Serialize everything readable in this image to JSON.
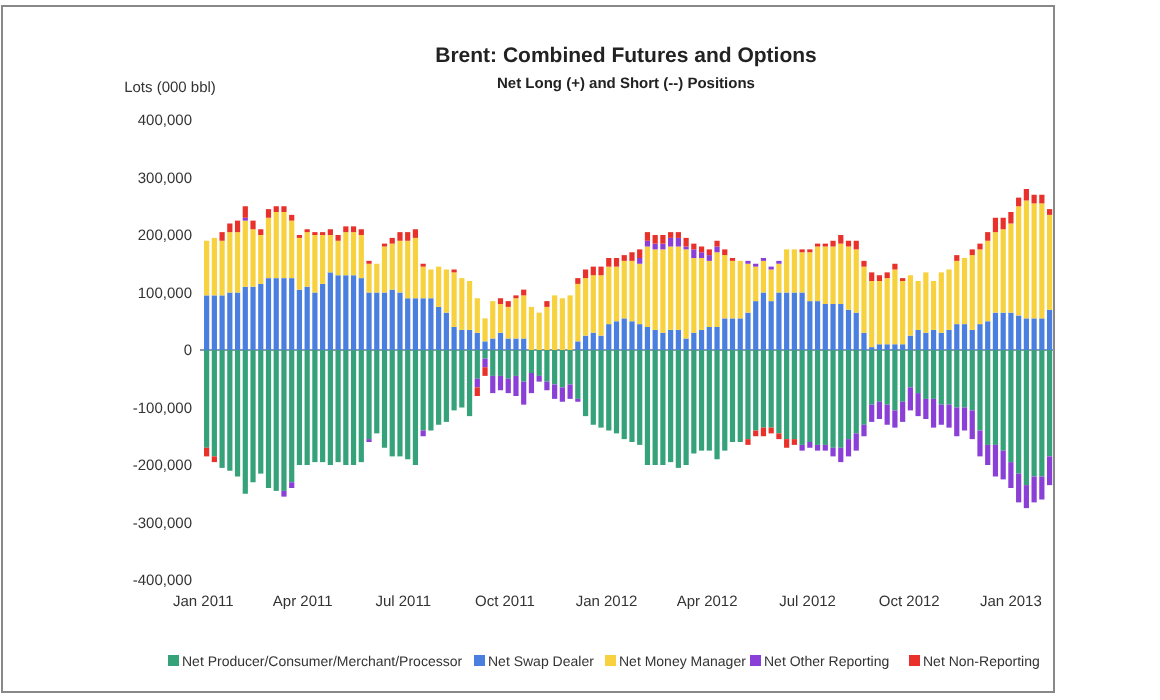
{
  "chart_data": {
    "type": "bar",
    "stacked": true,
    "title": "Brent: Combined Futures and Options",
    "subtitle": "Net Long (+) and Short (--) Positions",
    "ylabel": "Lots (000 bbl)",
    "x": [
      "2011-01-04",
      "2011-01-11",
      "2011-01-18",
      "2011-01-25",
      "2011-02-01",
      "2011-02-08",
      "2011-02-15",
      "2011-02-22",
      "2011-03-01",
      "2011-03-08",
      "2011-03-15",
      "2011-03-22",
      "2011-03-29",
      "2011-04-05",
      "2011-04-12",
      "2011-04-19",
      "2011-04-26",
      "2011-05-03",
      "2011-05-10",
      "2011-05-17",
      "2011-05-24",
      "2011-05-31",
      "2011-06-07",
      "2011-06-14",
      "2011-06-21",
      "2011-06-28",
      "2011-07-05",
      "2011-07-12",
      "2011-07-19",
      "2011-07-26",
      "2011-08-02",
      "2011-08-09",
      "2011-08-16",
      "2011-08-23",
      "2011-08-30",
      "2011-09-06",
      "2011-09-13",
      "2011-09-20",
      "2011-09-27",
      "2011-10-04",
      "2011-10-11",
      "2011-10-18",
      "2011-10-25",
      "2011-11-01",
      "2011-11-08",
      "2011-11-15",
      "2011-11-22",
      "2011-11-29",
      "2011-12-06",
      "2011-12-13",
      "2011-12-20",
      "2011-12-27",
      "2012-01-03",
      "2012-01-10",
      "2012-01-17",
      "2012-01-24",
      "2012-01-31",
      "2012-02-07",
      "2012-02-14",
      "2012-02-21",
      "2012-02-28",
      "2012-03-06",
      "2012-03-13",
      "2012-03-20",
      "2012-03-27",
      "2012-04-03",
      "2012-04-10",
      "2012-04-17",
      "2012-04-24",
      "2012-05-01",
      "2012-05-08",
      "2012-05-15",
      "2012-05-22",
      "2012-05-29",
      "2012-06-05",
      "2012-06-12",
      "2012-06-19",
      "2012-06-26",
      "2012-07-03",
      "2012-07-10",
      "2012-07-17",
      "2012-07-24",
      "2012-07-31",
      "2012-08-07",
      "2012-08-14",
      "2012-08-21",
      "2012-08-28",
      "2012-09-04",
      "2012-09-11",
      "2012-09-18",
      "2012-09-25",
      "2012-10-02",
      "2012-10-09",
      "2012-10-16",
      "2012-10-23",
      "2012-10-30",
      "2012-11-06",
      "2012-11-13",
      "2012-11-20",
      "2012-11-27",
      "2012-12-04",
      "2012-12-11",
      "2012-12-18",
      "2012-12-25",
      "2013-01-01",
      "2013-01-08",
      "2013-01-15",
      "2013-01-22",
      "2013-01-29",
      "2013-02-05"
    ],
    "series": [
      {
        "name": "Net Producer/Consumer/Merchant/Processor",
        "color": "#35a27a",
        "values": [
          -170000,
          -185000,
          -205000,
          -210000,
          -220000,
          -250000,
          -230000,
          -215000,
          -240000,
          -245000,
          -245000,
          -230000,
          -200000,
          -200000,
          -195000,
          -195000,
          -200000,
          -195000,
          -200000,
          -200000,
          -195000,
          -155000,
          -145000,
          -170000,
          -185000,
          -185000,
          -190000,
          -200000,
          -140000,
          -140000,
          -130000,
          -125000,
          -105000,
          -100000,
          -115000,
          -50000,
          -15000,
          -45000,
          -45000,
          -50000,
          -45000,
          -55000,
          -40000,
          -45000,
          -55000,
          -60000,
          -65000,
          -60000,
          -85000,
          -115000,
          -130000,
          -135000,
          -140000,
          -145000,
          -155000,
          -160000,
          -165000,
          -200000,
          -200000,
          -200000,
          -195000,
          -205000,
          -200000,
          -180000,
          -175000,
          -175000,
          -190000,
          -175000,
          -160000,
          -160000,
          -155000,
          -140000,
          -135000,
          -135000,
          -145000,
          -155000,
          -155000,
          -165000,
          -160000,
          -165000,
          -165000,
          -170000,
          -170000,
          -155000,
          -145000,
          -130000,
          -95000,
          -90000,
          -95000,
          -105000,
          -90000,
          -65000,
          -75000,
          -85000,
          -85000,
          -95000,
          -95000,
          -100000,
          -100000,
          -105000,
          -140000,
          -165000,
          -165000,
          -175000,
          -195000,
          -215000,
          -235000,
          -220000,
          -220000,
          -185000
        ]
      },
      {
        "name": "Net Swap Dealer",
        "color": "#4a7fe0",
        "values": [
          95000,
          95000,
          95000,
          100000,
          100000,
          110000,
          110000,
          115000,
          125000,
          125000,
          125000,
          125000,
          105000,
          110000,
          100000,
          115000,
          135000,
          130000,
          130000,
          130000,
          125000,
          100000,
          100000,
          100000,
          105000,
          100000,
          90000,
          90000,
          90000,
          90000,
          75000,
          65000,
          40000,
          35000,
          35000,
          30000,
          15000,
          20000,
          30000,
          20000,
          20000,
          20000,
          0,
          0,
          0,
          0,
          0,
          0,
          15000,
          25000,
          30000,
          25000,
          45000,
          50000,
          55000,
          50000,
          45000,
          40000,
          35000,
          30000,
          35000,
          35000,
          20000,
          30000,
          35000,
          40000,
          40000,
          55000,
          55000,
          55000,
          65000,
          85000,
          100000,
          85000,
          100000,
          100000,
          100000,
          100000,
          85000,
          85000,
          80000,
          80000,
          80000,
          70000,
          65000,
          30000,
          5000,
          10000,
          10000,
          10000,
          10000,
          25000,
          35000,
          30000,
          35000,
          30000,
          35000,
          45000,
          45000,
          35000,
          45000,
          50000,
          65000,
          65000,
          65000,
          60000,
          55000,
          55000,
          55000,
          70000
        ]
      },
      {
        "name": "Net Money Manager",
        "color": "#f7d23e",
        "values": [
          95000,
          100000,
          95000,
          105000,
          105000,
          115000,
          100000,
          85000,
          105000,
          115000,
          115000,
          100000,
          90000,
          95000,
          100000,
          85000,
          65000,
          60000,
          75000,
          75000,
          75000,
          50000,
          50000,
          80000,
          80000,
          90000,
          100000,
          105000,
          55000,
          50000,
          70000,
          75000,
          95000,
          90000,
          85000,
          60000,
          40000,
          65000,
          50000,
          55000,
          70000,
          75000,
          75000,
          65000,
          75000,
          95000,
          90000,
          95000,
          100000,
          100000,
          100000,
          105000,
          100000,
          95000,
          100000,
          105000,
          105000,
          140000,
          140000,
          145000,
          145000,
          145000,
          155000,
          130000,
          125000,
          115000,
          130000,
          110000,
          100000,
          100000,
          85000,
          60000,
          55000,
          55000,
          50000,
          75000,
          75000,
          70000,
          85000,
          95000,
          100000,
          100000,
          105000,
          110000,
          110000,
          115000,
          115000,
          110000,
          115000,
          130000,
          110000,
          105000,
          85000,
          105000,
          85000,
          105000,
          105000,
          110000,
          115000,
          130000,
          130000,
          140000,
          140000,
          145000,
          155000,
          190000,
          205000,
          200000,
          200000,
          165000
        ]
      },
      {
        "name": "Net Other Reporting",
        "color": "#8a3fd6",
        "values": [
          0,
          0,
          0,
          0,
          0,
          5000,
          0,
          0,
          0,
          0,
          -10000,
          -10000,
          0,
          0,
          0,
          0,
          0,
          0,
          0,
          0,
          0,
          -5000,
          0,
          0,
          0,
          0,
          0,
          0,
          -10000,
          0,
          0,
          0,
          0,
          0,
          0,
          -15000,
          -15000,
          -30000,
          -25000,
          -25000,
          -35000,
          -40000,
          -35000,
          -10000,
          -15000,
          -25000,
          -25000,
          -25000,
          -5000,
          0,
          0,
          0,
          0,
          0,
          0,
          0,
          10000,
          10000,
          10000,
          10000,
          15000,
          15000,
          5000,
          15000,
          10000,
          10000,
          10000,
          0,
          0,
          0,
          5000,
          5000,
          5000,
          5000,
          5000,
          0,
          0,
          -10000,
          -10000,
          -10000,
          -10000,
          -15000,
          -25000,
          -30000,
          -30000,
          -20000,
          -30000,
          -30000,
          -35000,
          -30000,
          -35000,
          -40000,
          -40000,
          -35000,
          -50000,
          -35000,
          -40000,
          -50000,
          -40000,
          -50000,
          -45000,
          -35000,
          -55000,
          -50000,
          -45000,
          -50000,
          -40000,
          -45000,
          -40000,
          -50000
        ]
      },
      {
        "name": "Net Non-Reporting",
        "color": "#e8312a",
        "values": [
          -15000,
          -10000,
          15000,
          15000,
          20000,
          20000,
          15000,
          10000,
          15000,
          10000,
          10000,
          10000,
          5000,
          5000,
          5000,
          5000,
          10000,
          10000,
          10000,
          10000,
          10000,
          5000,
          0,
          5000,
          10000,
          15000,
          15000,
          15000,
          5000,
          0,
          0,
          0,
          5000,
          0,
          0,
          -15000,
          -15000,
          0,
          10000,
          10000,
          5000,
          10000,
          0,
          0,
          10000,
          0,
          0,
          0,
          10000,
          15000,
          15000,
          15000,
          15000,
          15000,
          10000,
          15000,
          15000,
          15000,
          15000,
          15000,
          10000,
          10000,
          15000,
          10000,
          10000,
          10000,
          10000,
          10000,
          5000,
          0,
          -10000,
          -10000,
          -15000,
          -10000,
          -10000,
          -15000,
          -10000,
          5000,
          5000,
          5000,
          5000,
          10000,
          15000,
          10000,
          15000,
          10000,
          15000,
          10000,
          10000,
          10000,
          5000,
          0,
          0,
          0,
          0,
          0,
          0,
          10000,
          0,
          10000,
          10000,
          15000,
          25000,
          20000,
          20000,
          15000,
          20000,
          15000,
          15000,
          10000
        ]
      }
    ],
    "xlim": [
      "2010-12-29",
      "2013-02-09"
    ],
    "xticks": [
      {
        "value": "2011-01-01",
        "label": "Jan 2011"
      },
      {
        "value": "2011-04-01",
        "label": "Apr 2011"
      },
      {
        "value": "2011-07-01",
        "label": "Jul 2011"
      },
      {
        "value": "2011-10-01",
        "label": "Oct 2011"
      },
      {
        "value": "2012-01-01",
        "label": "Jan 2012"
      },
      {
        "value": "2012-04-01",
        "label": "Apr 2012"
      },
      {
        "value": "2012-07-01",
        "label": "Jul 2012"
      },
      {
        "value": "2012-10-01",
        "label": "Oct 2012"
      },
      {
        "value": "2013-01-01",
        "label": "Jan 2013"
      }
    ],
    "ylim": [
      -400000,
      400000
    ],
    "yticks": [
      {
        "value": -400000,
        "label": "-400,000"
      },
      {
        "value": -300000,
        "label": "-300,000"
      },
      {
        "value": -200000,
        "label": "-200,000"
      },
      {
        "value": -100000,
        "label": "-100,000"
      },
      {
        "value": 0,
        "label": "0"
      },
      {
        "value": 100000,
        "label": "100,000"
      },
      {
        "value": 200000,
        "label": "200,000"
      },
      {
        "value": 300000,
        "label": "300,000"
      },
      {
        "value": 400000,
        "label": "400,000"
      }
    ],
    "legend": "bottom"
  }
}
